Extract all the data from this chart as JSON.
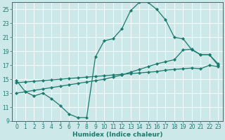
{
  "xlabel": "Humidex (Indice chaleur)",
  "xlim_min": -0.5,
  "xlim_max": 23.5,
  "ylim_min": 9,
  "ylim_max": 26,
  "yticks": [
    9,
    11,
    13,
    15,
    17,
    19,
    21,
    23,
    25
  ],
  "xticks": [
    0,
    1,
    2,
    3,
    4,
    5,
    6,
    7,
    8,
    9,
    10,
    11,
    12,
    13,
    14,
    15,
    16,
    17,
    18,
    19,
    20,
    21,
    22,
    23
  ],
  "line_color": "#1a7a6e",
  "bg_color": "#cce8e8",
  "grid_color": "#ffffff",
  "line1_x": [
    0,
    1,
    2,
    3,
    4,
    5,
    6,
    7,
    8,
    9,
    10,
    11,
    12,
    13,
    14,
    15,
    16,
    17,
    18,
    19,
    20,
    21,
    22,
    23
  ],
  "line1_y": [
    14.8,
    13.2,
    12.6,
    13.0,
    12.2,
    11.2,
    10.0,
    9.5,
    9.5,
    18.2,
    20.5,
    20.8,
    22.2,
    24.8,
    26.0,
    26.0,
    25.0,
    23.5,
    21.0,
    20.8,
    19.2,
    18.5,
    18.5,
    17.0
  ],
  "line2_x": [
    0,
    1,
    2,
    3,
    4,
    5,
    6,
    7,
    8,
    9,
    10,
    11,
    12,
    13,
    14,
    15,
    16,
    17,
    18,
    19,
    20,
    21,
    22,
    23
  ],
  "line2_y": [
    13.0,
    13.2,
    13.4,
    13.6,
    13.8,
    14.0,
    14.2,
    14.4,
    14.6,
    14.8,
    15.0,
    15.3,
    15.6,
    16.0,
    16.4,
    16.8,
    17.2,
    17.5,
    17.8,
    19.2,
    19.3,
    18.5,
    18.5,
    17.2
  ],
  "line3_x": [
    0,
    1,
    2,
    3,
    4,
    5,
    6,
    7,
    8,
    9,
    10,
    11,
    12,
    13,
    14,
    15,
    16,
    17,
    18,
    19,
    20,
    21,
    22,
    23
  ],
  "line3_y": [
    14.5,
    14.6,
    14.7,
    14.8,
    14.9,
    15.0,
    15.1,
    15.2,
    15.3,
    15.4,
    15.5,
    15.6,
    15.7,
    15.8,
    15.9,
    16.0,
    16.1,
    16.3,
    16.4,
    16.5,
    16.6,
    16.5,
    17.0,
    16.8
  ]
}
